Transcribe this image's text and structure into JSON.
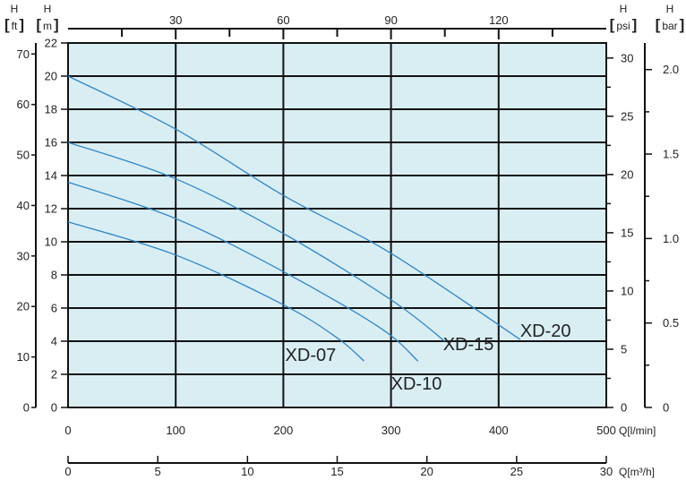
{
  "chart_data": {
    "type": "line",
    "title": "",
    "colors": {
      "plot_background": "#d9eef3",
      "grid": "#111111",
      "curve": "#2e86c8"
    },
    "grid": true,
    "x_axes": {
      "flow_l_min": {
        "ticks": [
          0,
          100,
          200,
          300,
          400,
          500
        ],
        "range": [
          0,
          500
        ],
        "label": "Q[l/min]"
      },
      "flow_m3_h": {
        "ticks": [
          0,
          5,
          10,
          15,
          20,
          25,
          30
        ],
        "range": [
          0,
          30
        ],
        "label": "Q[m³/h]"
      },
      "flow_top": {
        "ticks": [
          30,
          60,
          90,
          120
        ],
        "minor_ticks": [
          15,
          45,
          75,
          105,
          135
        ]
      }
    },
    "y_axes": {
      "head_ft": {
        "name": "H",
        "unit": "ft",
        "ticks": [
          0,
          10,
          20,
          30,
          40,
          50,
          60,
          70
        ]
      },
      "head_m": {
        "name": "H",
        "unit": "m",
        "ticks": [
          0,
          2,
          4,
          6,
          8,
          10,
          12,
          14,
          16,
          18,
          20,
          22
        ],
        "range": [
          0,
          22
        ]
      },
      "head_psi": {
        "name": "H",
        "unit": "psi",
        "ticks": [
          0,
          5,
          10,
          15,
          20,
          25,
          30
        ]
      },
      "head_bar": {
        "name": "H",
        "unit": "bar",
        "ticks": [
          "0",
          "0.5",
          "1.0",
          "1.5",
          "2.0"
        ]
      }
    },
    "series": [
      {
        "name": "XD-07",
        "x": [
          0,
          100,
          200,
          250,
          275
        ],
        "y": [
          11.2,
          9.2,
          6.2,
          4.2,
          2.8
        ]
      },
      {
        "name": "XD-10",
        "x": [
          0,
          100,
          200,
          290,
          325
        ],
        "y": [
          13.6,
          11.4,
          8.2,
          4.8,
          2.8
        ]
      },
      {
        "name": "XD-15",
        "x": [
          0,
          100,
          200,
          300,
          350
        ],
        "y": [
          16.0,
          13.8,
          10.5,
          6.5,
          4.0
        ]
      },
      {
        "name": "XD-20",
        "x": [
          0,
          100,
          200,
          300,
          420
        ],
        "y": [
          20.0,
          16.8,
          12.8,
          9.3,
          4.1
        ]
      }
    ]
  }
}
